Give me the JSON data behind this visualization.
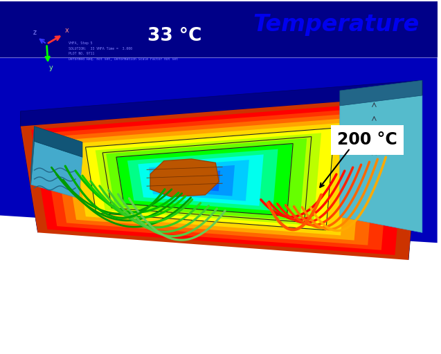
{
  "title": "Temperature",
  "title_color": "#0000EE",
  "title_fontsize": 24,
  "title_fontweight": "bold",
  "title_fontstyle": "italic",
  "bg_color": "#FFFFFF",
  "label_200": "200 °C",
  "label_33": "33 °C",
  "label_200_fontsize": 17,
  "label_33_fontsize": 19,
  "label_33_color": "#FFFFFF",
  "label_200_color": "#000000",
  "board_top_blue": "#0000CC",
  "board_side_dark": "#000088",
  "board_front_dark": "#000077",
  "small_text_color": "#8888FF",
  "meta_lines": [
    "VHFA, Step 5",
    "SOLUTION:  33 VHFA Time =  3.000",
    "PLOT NO. 9711",
    "Deformed Req. not set, Deformation Scale Factor not set"
  ],
  "temp_colors": [
    "#0000FF",
    "#0033FF",
    "#0066FF",
    "#0099FF",
    "#00CCFF",
    "#00FFEE",
    "#00FF88",
    "#00FF00",
    "#66FF00",
    "#BBFF00",
    "#FFFF00",
    "#FFD700",
    "#FFA500",
    "#FF6600",
    "#FF3300",
    "#FF0000",
    "#CC3300"
  ]
}
